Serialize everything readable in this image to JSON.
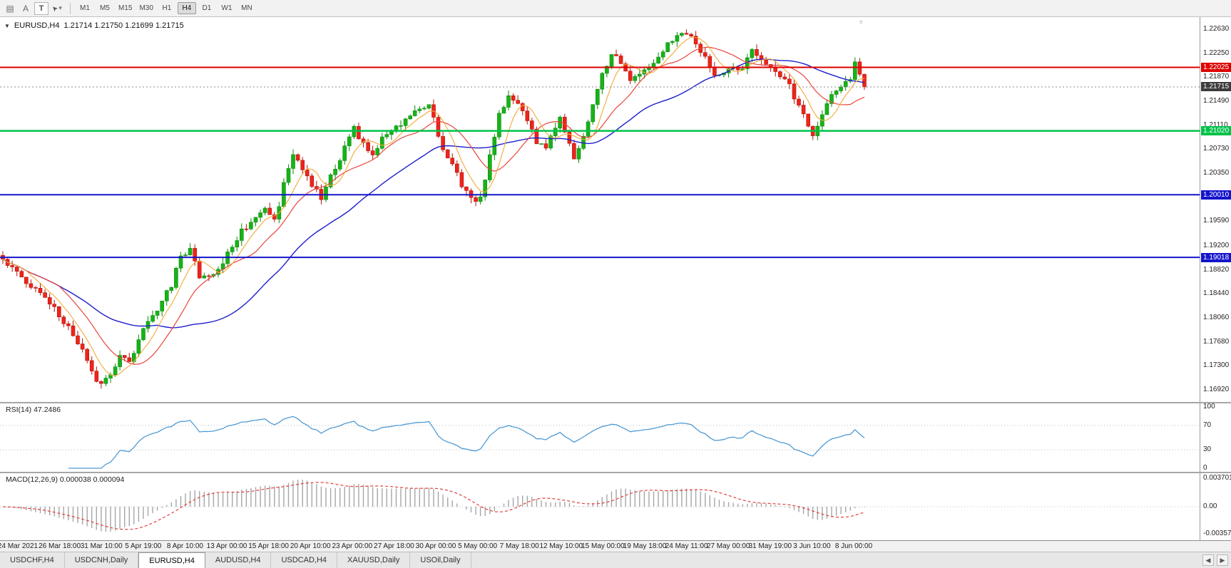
{
  "toolbar": {
    "text_tool": "A",
    "shape_tool": "T",
    "timeframes": [
      "M1",
      "M5",
      "M15",
      "M30",
      "H1",
      "H4",
      "D1",
      "W1",
      "MN"
    ],
    "active_timeframe": "H4"
  },
  "chart": {
    "type": "candlestick",
    "header": {
      "symbol": "EURUSD,H4",
      "ohlc": "1.21714 1.21750 1.21699 1.21715"
    },
    "price_axis": {
      "max": 1.2282,
      "min": 1.1673,
      "labels": [
        "1.22630",
        "1.22250",
        "1.21870",
        "1.21490",
        "1.21110",
        "1.20730",
        "1.20350",
        "1.19970",
        "1.19590",
        "1.19200",
        "1.18820",
        "1.18440",
        "1.18060",
        "1.17680",
        "1.17300",
        "1.16920"
      ]
    },
    "hlines": [
      {
        "price": 1.22025,
        "label": "1.22025",
        "color": "#dd0000",
        "width": 2
      },
      {
        "price": 1.2102,
        "label": "1.21020",
        "color": "#00c24a",
        "width": 2.5
      },
      {
        "price": 1.2001,
        "label": "1.20010",
        "color": "#1414cc",
        "width": 2
      },
      {
        "price": 1.19018,
        "label": "1.19018",
        "color": "#1414cc",
        "width": 2
      }
    ],
    "current_price": {
      "value": "1.21715",
      "box_color": "#3c3c3c"
    },
    "colors": {
      "candle_up": "#17b317",
      "candle_up_border": "#0c8a0c",
      "candle_down": "#ee2419",
      "candle_down_border": "#b3160e",
      "ma_fast": "#f2a93b",
      "ma_mid": "#e8453c",
      "ma_slow": "#1d1dcc"
    },
    "price_path_anchors": [
      [
        0,
        1.19
      ],
      [
        4,
        1.1872
      ],
      [
        8,
        1.1846
      ],
      [
        12,
        1.1812
      ],
      [
        16,
        1.1768
      ],
      [
        19,
        1.1722
      ],
      [
        21,
        1.1698
      ],
      [
        23,
        1.1716
      ],
      [
        25,
        1.1752
      ],
      [
        27,
        1.1737
      ],
      [
        30,
        1.1786
      ],
      [
        33,
        1.182
      ],
      [
        36,
        1.1856
      ],
      [
        38,
        1.1903
      ],
      [
        40,
        1.1915
      ],
      [
        42,
        1.187
      ],
      [
        45,
        1.188
      ],
      [
        47,
        1.1895
      ],
      [
        50,
        1.1932
      ],
      [
        53,
        1.1962
      ],
      [
        56,
        1.1975
      ],
      [
        58,
        1.1958
      ],
      [
        60,
        1.2015
      ],
      [
        62,
        1.2068
      ],
      [
        64,
        1.204
      ],
      [
        66,
        1.2018
      ],
      [
        68,
        1.1992
      ],
      [
        71,
        1.2045
      ],
      [
        74,
        1.209
      ],
      [
        75,
        1.2105
      ],
      [
        77,
        1.208
      ],
      [
        79,
        1.2068
      ],
      [
        82,
        1.2098
      ],
      [
        85,
        1.2112
      ],
      [
        88,
        1.213
      ],
      [
        91,
        1.2148
      ],
      [
        93,
        1.2088
      ],
      [
        95,
        1.2058
      ],
      [
        97,
        1.2032
      ],
      [
        100,
        1.1992
      ],
      [
        102,
        1.1998
      ],
      [
        104,
        1.206
      ],
      [
        106,
        1.2125
      ],
      [
        108,
        1.216
      ],
      [
        110,
        1.215
      ],
      [
        112,
        1.2118
      ],
      [
        114,
        1.2082
      ],
      [
        116,
        1.2072
      ],
      [
        118,
        1.2108
      ],
      [
        119,
        1.2128
      ],
      [
        121,
        1.2082
      ],
      [
        122,
        1.2055
      ],
      [
        124,
        1.2095
      ],
      [
        126,
        1.2148
      ],
      [
        128,
        1.219
      ],
      [
        130,
        1.2228
      ],
      [
        132,
        1.2208
      ],
      [
        134,
        1.2178
      ],
      [
        137,
        1.2196
      ],
      [
        139,
        1.2212
      ],
      [
        141,
        1.2232
      ],
      [
        144,
        1.2248
      ],
      [
        146,
        1.2258
      ],
      [
        148,
        1.2242
      ],
      [
        150,
        1.2215
      ],
      [
        152,
        1.2188
      ],
      [
        155,
        1.2198
      ],
      [
        158,
        1.2205
      ],
      [
        160,
        1.2228
      ],
      [
        162,
        1.2215
      ],
      [
        164,
        1.2202
      ],
      [
        166,
        1.2192
      ],
      [
        168,
        1.2172
      ],
      [
        170,
        1.2142
      ],
      [
        172,
        1.2112
      ],
      [
        173,
        1.2098
      ],
      [
        175,
        1.2128
      ],
      [
        177,
        1.2155
      ],
      [
        179,
        1.2168
      ],
      [
        181,
        1.2182
      ],
      [
        182,
        1.2208
      ],
      [
        183,
        1.219
      ],
      [
        184,
        1.2172
      ]
    ]
  },
  "rsi": {
    "label": "RSI(14) 47.2486",
    "line_color": "#4f9bd5",
    "axis_labels": [
      "100",
      "70",
      "30",
      "0"
    ],
    "guide_levels": [
      70,
      30
    ]
  },
  "macd": {
    "label": "MACD(12,26,9) 0.000038 0.000094",
    "axis_labels": [
      "0.003701",
      "0.00",
      "-0.003572"
    ],
    "histogram_color": "#a6a6a6",
    "signal_color": "#e04040"
  },
  "time_axis": {
    "labels": [
      "24 Mar 2021",
      "26 Mar 18:00",
      "31 Mar 10:00",
      "5 Apr 19:00",
      "8 Apr 10:00",
      "13 Apr 00:00",
      "15 Apr 18:00",
      "20 Apr 10:00",
      "23 Apr 00:00",
      "27 Apr 18:00",
      "30 Apr 00:00",
      "5 May 00:00",
      "7 May 18:00",
      "12 May 10:00",
      "15 May 00:00",
      "19 May 18:00",
      "24 May 11:00",
      "27 May 00:00",
      "31 May 19:00",
      "3 Jun 10:00",
      "8 Jun 00:00"
    ]
  },
  "tabs": {
    "active": "EURUSD,H4",
    "items": [
      {
        "label": "USDCHF,H4"
      },
      {
        "label": "USDCNH,Daily"
      },
      {
        "label": "EURUSD,H4"
      },
      {
        "label": "AUDUSD,H4"
      },
      {
        "label": "USDCAD,H4"
      },
      {
        "label": "XAUUSD,Daily"
      },
      {
        "label": "USOil,Daily"
      }
    ]
  }
}
